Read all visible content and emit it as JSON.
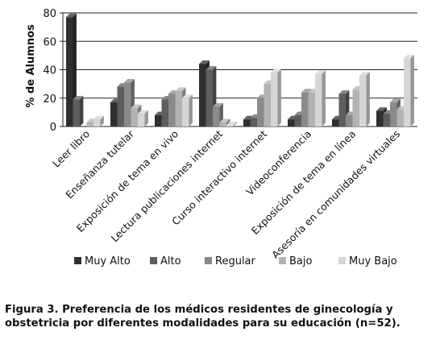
{
  "chart_data": {
    "type": "bar",
    "ylabel": "% de Alumnos",
    "ylim": [
      0,
      80
    ],
    "yticks": [
      0,
      20,
      40,
      60,
      80
    ],
    "grid": true,
    "legend_position": "bottom",
    "categories": [
      "Leer libro",
      "Enseñanza tutelar",
      "Exposición de tema en vivo",
      "Lectura publicaciones internet",
      "Curso interactivo internet",
      "Videoconferencia",
      "Exposición de tema en línea",
      "Asesoría en comunidades virtuales"
    ],
    "series": [
      {
        "name": "Muy Alto",
        "color": "#2f2f2f",
        "values": [
          77,
          17,
          8,
          44,
          5,
          5,
          5,
          11
        ]
      },
      {
        "name": "Alto",
        "color": "#5e5e5e",
        "values": [
          19,
          28,
          19,
          40,
          6,
          8,
          23,
          9
        ]
      },
      {
        "name": "Regular",
        "color": "#8a8a8a",
        "values": [
          0,
          31,
          23,
          14,
          20,
          24,
          8,
          17
        ]
      },
      {
        "name": "Bajo",
        "color": "#b3b3b3",
        "values": [
          3,
          13,
          25,
          3,
          30,
          24,
          26,
          12
        ]
      },
      {
        "name": "Muy Bajo",
        "color": "#d6d6d6",
        "values": [
          5,
          9,
          20,
          1,
          38,
          37,
          36,
          48
        ]
      }
    ]
  },
  "caption": {
    "label": "Figura 3.",
    "text": " Preferencia de los médicos residentes de ginecología y obstetricia por diferentes modalidades para su educación (n=52)."
  }
}
